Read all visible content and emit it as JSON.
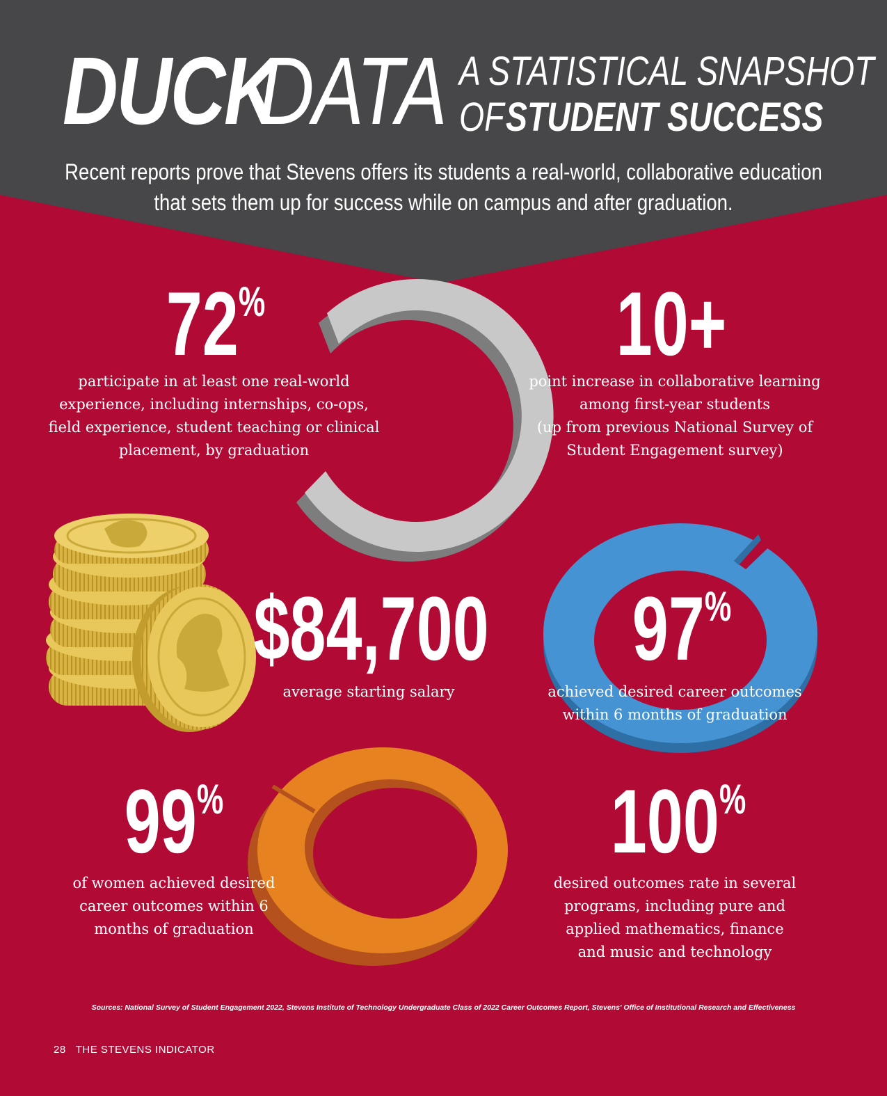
{
  "header": {
    "title_bold": "DUCK",
    "title_light": "DATA",
    "subtitle_line1": "A STATISTICAL SNAPSHOT",
    "subtitle_line2_light": "OF",
    "subtitle_line2_bold": "STUDENT SUCCESS",
    "intro_line1": "Recent reports prove that Stevens offers its students a real-world, collaborative education",
    "intro_line2": "that sets them up for success while on campus and after graduation."
  },
  "stats": {
    "real_world": {
      "number": "72",
      "unit": "%",
      "value_percent": 72,
      "desc_lines": [
        "participate in at least one real-world",
        "experience, including internships, co-ops,",
        "field experience, student teaching or clinical",
        "placement, by graduation"
      ]
    },
    "collab": {
      "number": "10+",
      "desc_lines": [
        "point increase in collaborative learning",
        "among first-year students",
        "(up from previous National Survey of",
        "Student Engagement survey)"
      ]
    },
    "salary": {
      "number": "$84,700",
      "desc_lines": [
        "average starting salary"
      ]
    },
    "career": {
      "number": "97",
      "unit": "%",
      "value_percent": 97,
      "desc_lines": [
        "achieved desired career outcomes",
        "within 6 months of graduation"
      ]
    },
    "women": {
      "number": "99",
      "unit": "%",
      "value_percent": 99,
      "desc_lines": [
        "of women achieved desired",
        "career  outcomes within 6",
        "months of graduation"
      ]
    },
    "programs": {
      "number": "100",
      "unit": "%",
      "desc_lines": [
        "desired outcomes rate in several",
        "programs, including pure and",
        "applied mathematics, finance",
        "and music and technology"
      ]
    }
  },
  "sources": "Sources: National Survey of Student Engagement 2022, Stevens Institute of Technology Undergraduate Class of  2022 Career Outcomes Report, Stevens' Office of Institutional Research and Effectiveness",
  "footer": {
    "page_number": "28",
    "publication": "THE STEVENS INDICATOR"
  },
  "colors": {
    "background": "#b10a35",
    "header_band": "#474749",
    "ring_gray": "#c8c8c8",
    "ring_blue": "#4593d2",
    "ring_orange": "#e6821f",
    "coin_gold": "#e8c85a"
  }
}
